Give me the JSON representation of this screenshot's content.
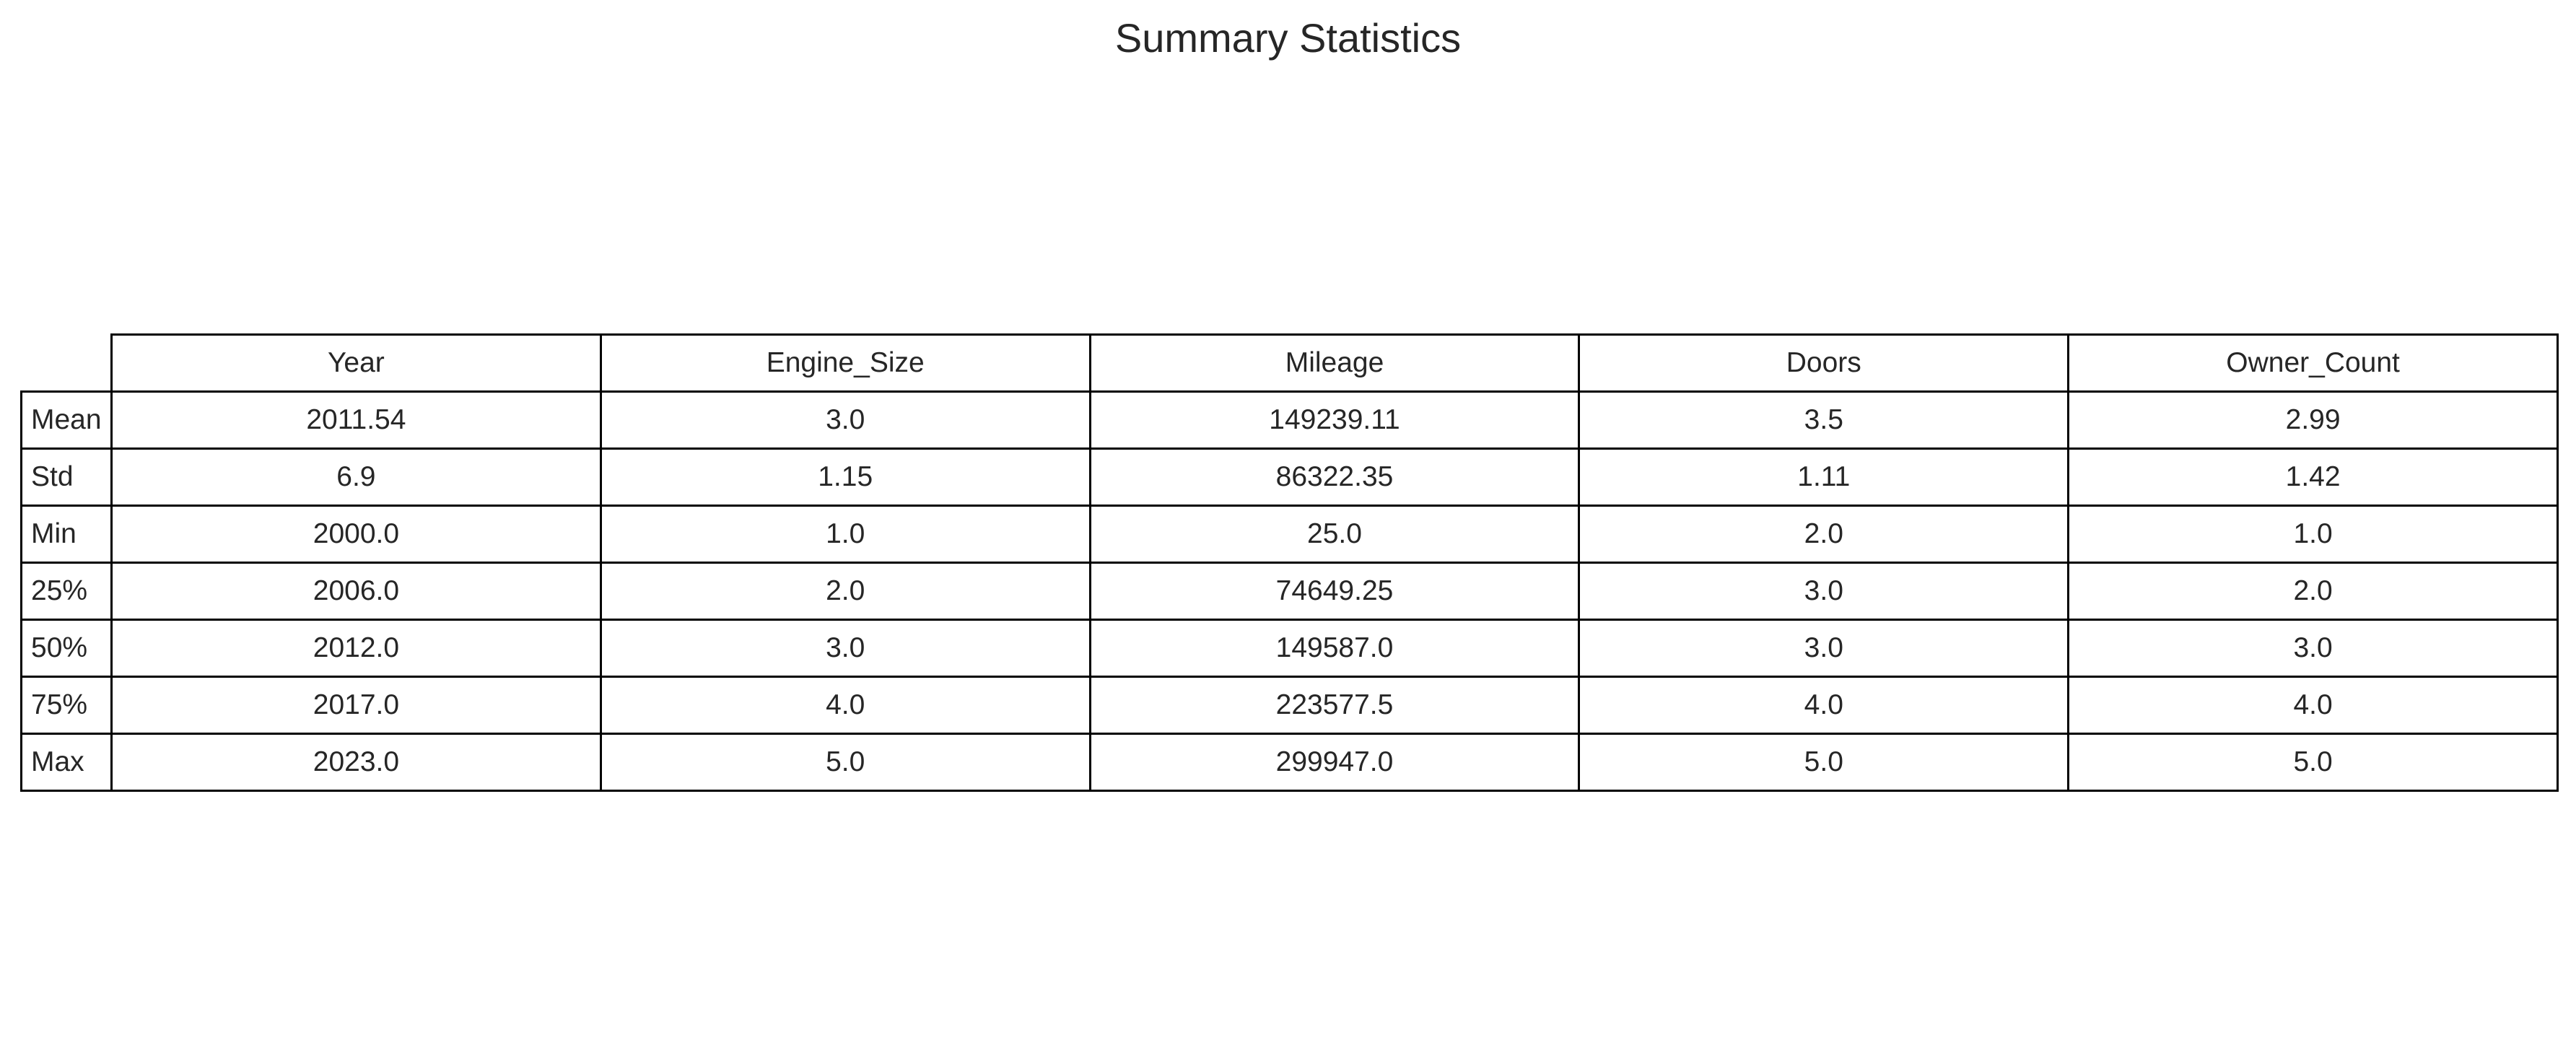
{
  "chart_data": {
    "type": "table",
    "title": "Summary Statistics",
    "columns": [
      "Year",
      "Engine_Size",
      "Mileage",
      "Doors",
      "Owner_Count"
    ],
    "rows": [
      {
        "label": "Mean",
        "values": [
          "2011.54",
          "3.0",
          "149239.11",
          "3.5",
          "2.99"
        ]
      },
      {
        "label": "Std",
        "values": [
          "6.9",
          "1.15",
          "86322.35",
          "1.11",
          "1.42"
        ]
      },
      {
        "label": "Min",
        "values": [
          "2000.0",
          "1.0",
          "25.0",
          "2.0",
          "1.0"
        ]
      },
      {
        "label": "25%",
        "values": [
          "2006.0",
          "2.0",
          "74649.25",
          "3.0",
          "2.0"
        ]
      },
      {
        "label": "50%",
        "values": [
          "2012.0",
          "3.0",
          "149587.0",
          "3.0",
          "3.0"
        ]
      },
      {
        "label": "75%",
        "values": [
          "2017.0",
          "4.0",
          "223577.5",
          "4.0",
          "4.0"
        ]
      },
      {
        "label": "Max",
        "values": [
          "2023.0",
          "5.0",
          "299947.0",
          "5.0",
          "5.0"
        ]
      }
    ]
  }
}
